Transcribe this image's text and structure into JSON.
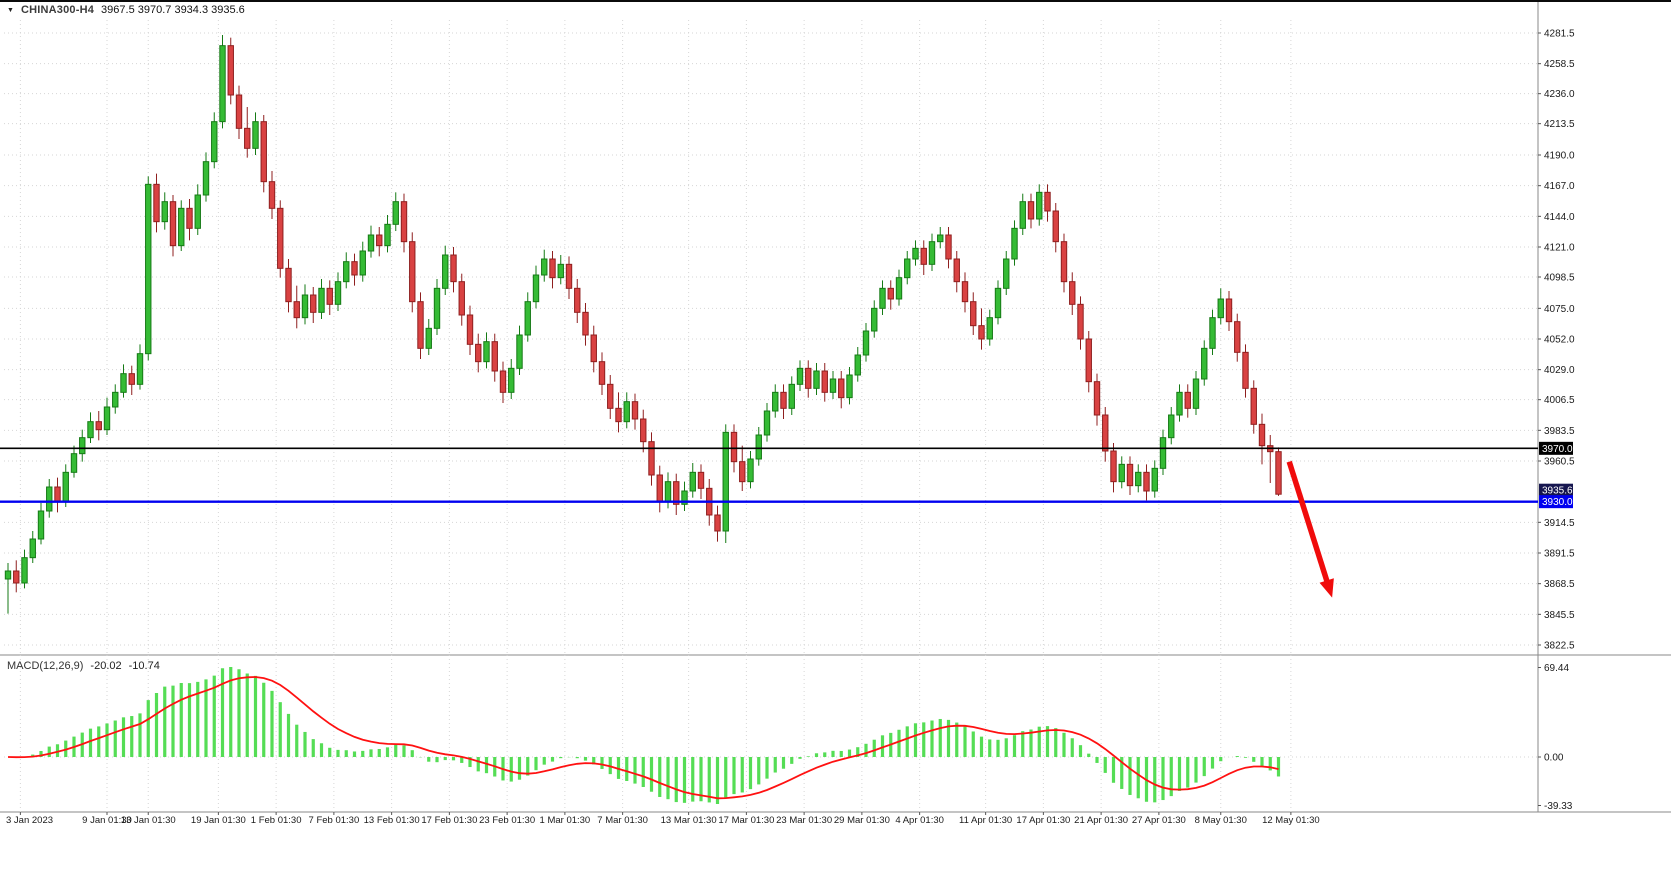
{
  "header": {
    "collapse_arrow": "▼",
    "symbol": "CHINA300-H4",
    "ohlc": "3967.5 3970.7 3934.3 3935.6",
    "open": "3967.5",
    "high": "3970.7",
    "low": "3934.3",
    "close": "3935.6"
  },
  "macd_panel": {
    "label": "MACD(12,26,9)",
    "macd_value": "-20.02",
    "signal_value": "-10.74",
    "axis_ticks": [
      "69.44",
      "0.00",
      "-39.33"
    ]
  },
  "chart_data": {
    "type": "candlestick",
    "title": "CHINA300-H4",
    "timeframe": "H4",
    "legend_position": "none",
    "grid": true,
    "price_axis_ticks": [
      "4281.5",
      "4258.5",
      "4236.0",
      "4213.5",
      "4190.0",
      "4167.0",
      "4144.0",
      "4121.0",
      "4098.5",
      "4075.0",
      "4052.0",
      "4029.0",
      "4006.5",
      "3983.5",
      "3960.5",
      "3914.5",
      "3891.5",
      "3868.5",
      "3845.5",
      "3822.5"
    ],
    "time_axis_ticks": [
      {
        "label": "3 Jan 2023",
        "i": 1.5
      },
      {
        "label": "9 Jan 01:30",
        "i": 12
      },
      {
        "label": "13 Jan 01:30",
        "i": 17
      },
      {
        "label": "19 Jan 01:30",
        "i": 25.5
      },
      {
        "label": "1 Feb 01:30",
        "i": 32.5
      },
      {
        "label": "7 Feb 01:30",
        "i": 39.5
      },
      {
        "label": "13 Feb 01:30",
        "i": 46.5
      },
      {
        "label": "17 Feb 01:30",
        "i": 53.5
      },
      {
        "label": "23 Feb 01:30",
        "i": 60.5
      },
      {
        "label": "1 Mar 01:30",
        "i": 67.5
      },
      {
        "label": "7 Mar 01:30",
        "i": 74.5
      },
      {
        "label": "13 Mar 01:30",
        "i": 82.5
      },
      {
        "label": "17 Mar 01:30",
        "i": 89.5
      },
      {
        "label": "23 Mar 01:30",
        "i": 96.5
      },
      {
        "label": "29 Mar 01:30",
        "i": 103.5
      },
      {
        "label": "4 Apr 01:30",
        "i": 110.5
      },
      {
        "label": "11 Apr 01:30",
        "i": 118.5
      },
      {
        "label": "17 Apr 01:30",
        "i": 125.5
      },
      {
        "label": "21 Apr 01:30",
        "i": 132.5
      },
      {
        "label": "27 Apr 01:30",
        "i": 139.5
      },
      {
        "label": "8 May 01:30",
        "i": 147
      },
      {
        "label": "12 May 01:30",
        "i": 155.5
      }
    ],
    "candles": [
      [
        3872,
        3884,
        3846,
        3878
      ],
      [
        3878,
        3886,
        3862,
        3869
      ],
      [
        3869,
        3894,
        3865,
        3888
      ],
      [
        3888,
        3908,
        3884,
        3902
      ],
      [
        3902,
        3929,
        3898,
        3923
      ],
      [
        3923,
        3947,
        3918,
        3941
      ],
      [
        3941,
        3948,
        3922,
        3930
      ],
      [
        3930,
        3958,
        3926,
        3952
      ],
      [
        3952,
        3972,
        3948,
        3966
      ],
      [
        3966,
        3984,
        3960,
        3978
      ],
      [
        3978,
        3997,
        3974,
        3990
      ],
      [
        3990,
        3998,
        3976,
        3984
      ],
      [
        3984,
        4008,
        3980,
        4001
      ],
      [
        4001,
        4018,
        3996,
        4012
      ],
      [
        4012,
        4033,
        4008,
        4026
      ],
      [
        4026,
        4032,
        4010,
        4018
      ],
      [
        4018,
        4048,
        4014,
        4041
      ],
      [
        4041,
        4174,
        4036,
        4168
      ],
      [
        4168,
        4176,
        4132,
        4140
      ],
      [
        4140,
        4162,
        4134,
        4155
      ],
      [
        4155,
        4160,
        4114,
        4122
      ],
      [
        4122,
        4156,
        4118,
        4150
      ],
      [
        4150,
        4157,
        4126,
        4135
      ],
      [
        4135,
        4168,
        4130,
        4160
      ],
      [
        4160,
        4192,
        4155,
        4185
      ],
      [
        4185,
        4222,
        4180,
        4215
      ],
      [
        4215,
        4280,
        4210,
        4272
      ],
      [
        4272,
        4278,
        4228,
        4235
      ],
      [
        4235,
        4242,
        4202,
        4210
      ],
      [
        4210,
        4226,
        4188,
        4195
      ],
      [
        4195,
        4222,
        4190,
        4215
      ],
      [
        4215,
        4220,
        4162,
        4170
      ],
      [
        4170,
        4178,
        4142,
        4150
      ],
      [
        4150,
        4156,
        4098,
        4105
      ],
      [
        4105,
        4112,
        4072,
        4080
      ],
      [
        4080,
        4092,
        4060,
        4068
      ],
      [
        4068,
        4093,
        4063,
        4085
      ],
      [
        4085,
        4091,
        4064,
        4072
      ],
      [
        4072,
        4097,
        4067,
        4090
      ],
      [
        4090,
        4096,
        4070,
        4078
      ],
      [
        4078,
        4102,
        4073,
        4095
      ],
      [
        4095,
        4117,
        4090,
        4110
      ],
      [
        4110,
        4116,
        4092,
        4100
      ],
      [
        4100,
        4125,
        4095,
        4118
      ],
      [
        4118,
        4137,
        4113,
        4130
      ],
      [
        4130,
        4136,
        4114,
        4122
      ],
      [
        4122,
        4145,
        4117,
        4138
      ],
      [
        4138,
        4162,
        4133,
        4155
      ],
      [
        4155,
        4161,
        4117,
        4125
      ],
      [
        4125,
        4132,
        4072,
        4080
      ],
      [
        4080,
        4087,
        4037,
        4045
      ],
      [
        4045,
        4067,
        4040,
        4060
      ],
      [
        4060,
        4097,
        4055,
        4090
      ],
      [
        4090,
        4122,
        4085,
        4115
      ],
      [
        4115,
        4121,
        4087,
        4095
      ],
      [
        4095,
        4101,
        4062,
        4070
      ],
      [
        4070,
        4077,
        4040,
        4048
      ],
      [
        4048,
        4056,
        4027,
        4035
      ],
      [
        4035,
        4057,
        4030,
        4050
      ],
      [
        4050,
        4056,
        4020,
        4028
      ],
      [
        4028,
        4035,
        4004,
        4012
      ],
      [
        4012,
        4037,
        4007,
        4030
      ],
      [
        4030,
        4062,
        4025,
        4055
      ],
      [
        4055,
        4087,
        4050,
        4080
      ],
      [
        4080,
        4107,
        4075,
        4100
      ],
      [
        4100,
        4119,
        4095,
        4112
      ],
      [
        4112,
        4118,
        4090,
        4098
      ],
      [
        4098,
        4115,
        4093,
        4108
      ],
      [
        4108,
        4114,
        4082,
        4090
      ],
      [
        4090,
        4097,
        4064,
        4072
      ],
      [
        4072,
        4079,
        4047,
        4055
      ],
      [
        4055,
        4062,
        4027,
        4035
      ],
      [
        4035,
        4042,
        4010,
        4018
      ],
      [
        4018,
        4025,
        3992,
        4000
      ],
      [
        4000,
        4012,
        3982,
        3990
      ],
      [
        3990,
        4012,
        3985,
        4005
      ],
      [
        4005,
        4011,
        3984,
        3992
      ],
      [
        3992,
        3999,
        3967,
        3975
      ],
      [
        3975,
        3982,
        3942,
        3950
      ],
      [
        3950,
        3957,
        3922,
        3930
      ],
      [
        3930,
        3952,
        3925,
        3945
      ],
      [
        3945,
        3951,
        3920,
        3928
      ],
      [
        3928,
        3945,
        3923,
        3938
      ],
      [
        3938,
        3959,
        3933,
        3952
      ],
      [
        3952,
        3958,
        3932,
        3940
      ],
      [
        3940,
        3947,
        3912,
        3920
      ],
      [
        3920,
        3927,
        3900,
        3908
      ],
      [
        3908,
        3988,
        3899,
        3982
      ],
      [
        3982,
        3988,
        3952,
        3960
      ],
      [
        3960,
        3972,
        3938,
        3945
      ],
      [
        3945,
        3968,
        3940,
        3962
      ],
      [
        3962,
        3986,
        3957,
        3980
      ],
      [
        3980,
        4004,
        3975,
        3998
      ],
      [
        3998,
        4018,
        3993,
        4012
      ],
      [
        4012,
        4018,
        3992,
        4000
      ],
      [
        4000,
        4024,
        3995,
        4018
      ],
      [
        4018,
        4036,
        4013,
        4030
      ],
      [
        4030,
        4036,
        4008,
        4015
      ],
      [
        4015,
        4034,
        4010,
        4028
      ],
      [
        4028,
        4034,
        4005,
        4012
      ],
      [
        4012,
        4028,
        4007,
        4022
      ],
      [
        4022,
        4028,
        4000,
        4008
      ],
      [
        4008,
        4031,
        4003,
        4025
      ],
      [
        4025,
        4046,
        4020,
        4040
      ],
      [
        4040,
        4064,
        4035,
        4058
      ],
      [
        4058,
        4081,
        4053,
        4075
      ],
      [
        4075,
        4096,
        4070,
        4090
      ],
      [
        4090,
        4096,
        4074,
        4082
      ],
      [
        4082,
        4104,
        4077,
        4098
      ],
      [
        4098,
        4118,
        4093,
        4112
      ],
      [
        4112,
        4126,
        4107,
        4120
      ],
      [
        4120,
        4126,
        4100,
        4108
      ],
      [
        4108,
        4131,
        4103,
        4125
      ],
      [
        4125,
        4136,
        4120,
        4130
      ],
      [
        4130,
        4136,
        4105,
        4112
      ],
      [
        4112,
        4118,
        4087,
        4095
      ],
      [
        4095,
        4102,
        4072,
        4080
      ],
      [
        4080,
        4087,
        4055,
        4062
      ],
      [
        4062,
        4075,
        4044,
        4052
      ],
      [
        4052,
        4074,
        4047,
        4068
      ],
      [
        4068,
        4096,
        4063,
        4090
      ],
      [
        4090,
        4118,
        4085,
        4112
      ],
      [
        4112,
        4141,
        4107,
        4135
      ],
      [
        4135,
        4161,
        4130,
        4155
      ],
      [
        4155,
        4161,
        4135,
        4142
      ],
      [
        4142,
        4168,
        4137,
        4162
      ],
      [
        4162,
        4168,
        4140,
        4148
      ],
      [
        4148,
        4154,
        4117,
        4125
      ],
      [
        4125,
        4131,
        4087,
        4095
      ],
      [
        4095,
        4102,
        4070,
        4078
      ],
      [
        4078,
        4084,
        4044,
        4052
      ],
      [
        4052,
        4058,
        4012,
        4020
      ],
      [
        4020,
        4026,
        3987,
        3995
      ],
      [
        3995,
        4001,
        3960,
        3968
      ],
      [
        3968,
        3974,
        3937,
        3945
      ],
      [
        3945,
        3964,
        3940,
        3958
      ],
      [
        3958,
        3964,
        3935,
        3942
      ],
      [
        3942,
        3958,
        3937,
        3952
      ],
      [
        3952,
        3958,
        3931,
        3938
      ],
      [
        3938,
        3961,
        3933,
        3955
      ],
      [
        3955,
        3984,
        3950,
        3978
      ],
      [
        3978,
        4001,
        3973,
        3995
      ],
      [
        3995,
        4018,
        3990,
        4012
      ],
      [
        4012,
        4018,
        3993,
        4000
      ],
      [
        4000,
        4028,
        3995,
        4022
      ],
      [
        4022,
        4051,
        4017,
        4045
      ],
      [
        4045,
        4074,
        4040,
        4068
      ],
      [
        4068,
        4090,
        4063,
        4082
      ],
      [
        4082,
        4088,
        4058,
        4065
      ],
      [
        4065,
        4071,
        4035,
        4042
      ],
      [
        4042,
        4048,
        4008,
        4015
      ],
      [
        4015,
        4021,
        3981,
        3988
      ],
      [
        3988,
        3996,
        3958,
        3972
      ],
      [
        3972,
        3980,
        3944,
        3967.5
      ],
      [
        3967.5,
        3970.7,
        3934.3,
        3935.6
      ]
    ],
    "hlines": [
      {
        "price": 3970.0,
        "label": "3970.0",
        "color": "#000000",
        "width": 1.6
      },
      {
        "price": 3930.0,
        "label": "3930.0",
        "color": "#0000f0",
        "width": 2.4
      }
    ],
    "current_price": {
      "value": 3935.6,
      "label": "3935.6",
      "bg": "#16164f"
    },
    "arrow": {
      "from": {
        "i": 155.3,
        "price": 3960
      },
      "to": {
        "i": 160.5,
        "price": 3858
      },
      "color": "#f00c0c"
    },
    "macd": {
      "fast": 12,
      "slow": 26,
      "signal": 9
    },
    "colors": {
      "up_fill": "#35bb35",
      "up_stroke": "#157a15",
      "down_fill": "#d94242",
      "down_stroke": "#8f1f1f",
      "grid": "#d6d6d6",
      "macd_hist": "#55dd55",
      "macd_signal": "#ff1111",
      "axis_text": "#1a1a1a",
      "separator": "#8a8a8a"
    }
  }
}
